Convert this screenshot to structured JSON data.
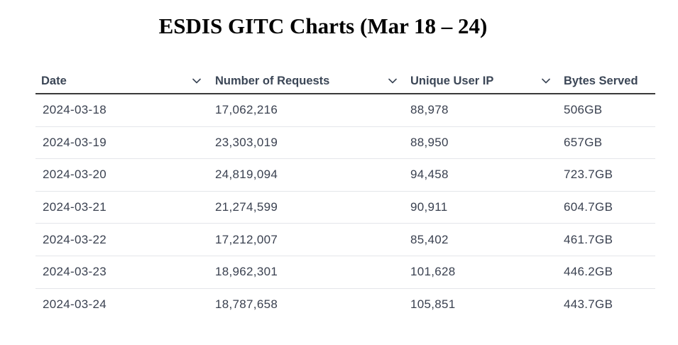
{
  "title": "ESDIS GITC Charts (Mar 18 – 24)",
  "table": {
    "columns": [
      {
        "label": "Date",
        "sort_icon": "chevron-down-icon"
      },
      {
        "label": "Number of Requests",
        "sort_icon": "chevron-down-icon"
      },
      {
        "label": "Unique User IP",
        "sort_icon": "chevron-down-icon"
      },
      {
        "label": "Bytes Served"
      }
    ],
    "rows": [
      {
        "date": "2024-03-18",
        "requests": "17,062,216",
        "unique_ip": "88,978",
        "bytes": "506GB"
      },
      {
        "date": "2024-03-19",
        "requests": "23,303,019",
        "unique_ip": "88,950",
        "bytes": "657GB"
      },
      {
        "date": "2024-03-20",
        "requests": "24,819,094",
        "unique_ip": "94,458",
        "bytes": "723.7GB"
      },
      {
        "date": "2024-03-21",
        "requests": "21,274,599",
        "unique_ip": "90,911",
        "bytes": "604.7GB"
      },
      {
        "date": "2024-03-22",
        "requests": "17,212,007",
        "unique_ip": "85,402",
        "bytes": "461.7GB"
      },
      {
        "date": "2024-03-23",
        "requests": "18,962,301",
        "unique_ip": "101,628",
        "bytes": "446.2GB"
      },
      {
        "date": "2024-03-24",
        "requests": "18,787,658",
        "unique_ip": "105,851",
        "bytes": "443.7GB"
      }
    ]
  },
  "colors": {
    "header_text": "#3b4656",
    "cell_text": "#3a4150",
    "header_rule": "#3a3a3a",
    "row_divider": "#e4e6ea"
  }
}
